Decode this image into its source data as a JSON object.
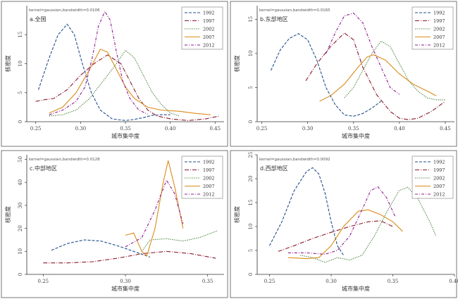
{
  "chart_data": [
    {
      "type": "line",
      "panel_label": "a.全国",
      "kernel_note": "kernel=gaussian,bandwidth=0.0106",
      "xlabel": "城市集中度",
      "ylabel": "核密度",
      "xlim": [
        0.24,
        0.46
      ],
      "ylim": [
        0,
        20
      ],
      "xticks": [
        0.25,
        0.3,
        0.35,
        0.4,
        0.45
      ],
      "xtick_labels": [
        "0.25",
        "0.30",
        "0.35",
        "0.40",
        "0.45"
      ],
      "yticks": [
        0,
        5,
        10,
        15
      ],
      "ytick_labels": [
        "0",
        "5",
        "10",
        "15"
      ],
      "legend_position": "top-right",
      "series": [
        {
          "name": "1992",
          "color": "#1f4e8c",
          "dash": "4,2",
          "points": [
            [
              0.253,
              5.5
            ],
            [
              0.265,
              11
            ],
            [
              0.275,
              15
            ],
            [
              0.285,
              16.8
            ],
            [
              0.293,
              15
            ],
            [
              0.302,
              10
            ],
            [
              0.312,
              5
            ],
            [
              0.322,
              2
            ],
            [
              0.335,
              0.5
            ],
            [
              0.35,
              0.2
            ],
            [
              0.36,
              0.4
            ],
            [
              0.37,
              0.7
            ],
            [
              0.38,
              1.1
            ],
            [
              0.39,
              1.2
            ],
            [
              0.4,
              1.2
            ]
          ]
        },
        {
          "name": "1997",
          "color": "#8b1a2b",
          "dash": "6,2,1,2",
          "points": [
            [
              0.25,
              3.5
            ],
            [
              0.26,
              3.8
            ],
            [
              0.27,
              4
            ],
            [
              0.285,
              5.5
            ],
            [
              0.3,
              8
            ],
            [
              0.315,
              10
            ],
            [
              0.33,
              11.5
            ],
            [
              0.345,
              10
            ],
            [
              0.355,
              7
            ],
            [
              0.365,
              4
            ],
            [
              0.375,
              2
            ],
            [
              0.385,
              1
            ],
            [
              0.4,
              0.5
            ],
            [
              0.42,
              0.2
            ],
            [
              0.44,
              0.5
            ],
            [
              0.455,
              1
            ]
          ]
        },
        {
          "name": "2002",
          "color": "#3a7a2a",
          "dash": "1.2,1.5",
          "points": [
            [
              0.265,
              1
            ],
            [
              0.28,
              1.2
            ],
            [
              0.295,
              2
            ],
            [
              0.31,
              4
            ],
            [
              0.325,
              7
            ],
            [
              0.34,
              10
            ],
            [
              0.35,
              12.3
            ],
            [
              0.36,
              11
            ],
            [
              0.37,
              8
            ],
            [
              0.38,
              5
            ],
            [
              0.39,
              3
            ],
            [
              0.4,
              1.5
            ],
            [
              0.41,
              1
            ]
          ]
        },
        {
          "name": "2007",
          "color": "#d98c1a",
          "dash": "",
          "points": [
            [
              0.265,
              1.5
            ],
            [
              0.28,
              2.5
            ],
            [
              0.295,
              5
            ],
            [
              0.31,
              9
            ],
            [
              0.322,
              12.5
            ],
            [
              0.33,
              12
            ],
            [
              0.34,
              9
            ],
            [
              0.35,
              6
            ],
            [
              0.36,
              4
            ],
            [
              0.375,
              2.5
            ],
            [
              0.39,
              2
            ],
            [
              0.41,
              1.8
            ],
            [
              0.43,
              1.4
            ],
            [
              0.445,
              1.2
            ]
          ]
        },
        {
          "name": "2012",
          "color": "#8e1a8e",
          "dash": "4,2,1,2",
          "points": [
            [
              0.265,
              1.2
            ],
            [
              0.28,
              2
            ],
            [
              0.295,
              3.5
            ],
            [
              0.305,
              6
            ],
            [
              0.313,
              11
            ],
            [
              0.32,
              16.5
            ],
            [
              0.327,
              19
            ],
            [
              0.333,
              17.5
            ],
            [
              0.34,
              12
            ],
            [
              0.347,
              7
            ],
            [
              0.355,
              4
            ],
            [
              0.365,
              2
            ],
            [
              0.375,
              1.3
            ]
          ]
        }
      ]
    },
    {
      "type": "line",
      "panel_label": "b.东部地区",
      "kernel_note": "kernel=gaussian,bandwidth=0.0165",
      "xlabel": "城市集中度",
      "ylabel": "核密度",
      "xlim": [
        0.245,
        0.46
      ],
      "ylim": [
        0,
        17
      ],
      "xticks": [
        0.25,
        0.3,
        0.35,
        0.4,
        0.45
      ],
      "xtick_labels": [
        "0.25",
        "0.30",
        "0.35",
        "0.40",
        "0.45"
      ],
      "yticks": [
        0,
        5,
        10,
        15
      ],
      "ytick_labels": [
        "0",
        "5",
        "10",
        "15"
      ],
      "legend_position": "top-right",
      "series": [
        {
          "name": "1992",
          "color": "#1f4e8c",
          "dash": "4,2",
          "points": [
            [
              0.26,
              7.5
            ],
            [
              0.27,
              10.5
            ],
            [
              0.28,
              12.2
            ],
            [
              0.29,
              12.9
            ],
            [
              0.3,
              12
            ],
            [
              0.31,
              9
            ],
            [
              0.32,
              5
            ],
            [
              0.33,
              2.5
            ],
            [
              0.34,
              1
            ],
            [
              0.35,
              0.8
            ],
            [
              0.36,
              1.2
            ],
            [
              0.37,
              2
            ],
            [
              0.38,
              3
            ]
          ]
        },
        {
          "name": "1997",
          "color": "#8b1a2b",
          "dash": "6,2,1,2",
          "points": [
            [
              0.298,
              6
            ],
            [
              0.31,
              8.5
            ],
            [
              0.325,
              11
            ],
            [
              0.34,
              13
            ],
            [
              0.35,
              12
            ],
            [
              0.36,
              8
            ],
            [
              0.375,
              4
            ],
            [
              0.39,
              1.5
            ],
            [
              0.4,
              0.5
            ],
            [
              0.41,
              0.3
            ],
            [
              0.42,
              0.5
            ],
            [
              0.435,
              1.5
            ],
            [
              0.45,
              3
            ]
          ]
        },
        {
          "name": "2002",
          "color": "#3a7a2a",
          "dash": "1.2,1.5",
          "points": [
            [
              0.34,
              3.5
            ],
            [
              0.35,
              5
            ],
            [
              0.36,
              7.5
            ],
            [
              0.37,
              10
            ],
            [
              0.38,
              11.8
            ],
            [
              0.39,
              11
            ],
            [
              0.4,
              8.5
            ],
            [
              0.41,
              6
            ],
            [
              0.42,
              4.5
            ],
            [
              0.43,
              3.5
            ],
            [
              0.44,
              3.2
            ],
            [
              0.45,
              3.2
            ]
          ]
        },
        {
          "name": "2007",
          "color": "#d98c1a",
          "dash": "",
          "points": [
            [
              0.313,
              3
            ],
            [
              0.325,
              3.8
            ],
            [
              0.34,
              5.5
            ],
            [
              0.355,
              8
            ],
            [
              0.365,
              9.5
            ],
            [
              0.372,
              9.8
            ],
            [
              0.385,
              9
            ],
            [
              0.4,
              7
            ],
            [
              0.415,
              5.5
            ],
            [
              0.43,
              4.5
            ],
            [
              0.44,
              3.8
            ]
          ]
        },
        {
          "name": "2012",
          "color": "#8e1a8e",
          "dash": "4,2,1,2",
          "points": [
            [
              0.32,
              10
            ],
            [
              0.33,
              13
            ],
            [
              0.34,
              15.5
            ],
            [
              0.35,
              15.9
            ],
            [
              0.36,
              14.5
            ],
            [
              0.37,
              11
            ],
            [
              0.38,
              8
            ],
            [
              0.39,
              5
            ],
            [
              0.4,
              4
            ]
          ]
        }
      ]
    },
    {
      "type": "line",
      "panel_label": "c.中部地区",
      "kernel_note": "kernel=gaussian,bandwidth=0.0128",
      "xlabel": "城市集中度",
      "ylabel": "核密度",
      "xlim": [
        0.24,
        0.36
      ],
      "ylim": [
        0,
        52
      ],
      "xticks": [
        0.25,
        0.3,
        0.35
      ],
      "xtick_labels": [
        "0.25",
        "0.30",
        "0.35"
      ],
      "yticks": [
        0,
        10,
        20,
        30,
        40,
        50
      ],
      "ytick_labels": [
        "0",
        "10",
        "20",
        "30",
        "40",
        "50"
      ],
      "legend_position": "top-right",
      "series": [
        {
          "name": "1992",
          "color": "#1f4e8c",
          "dash": "4,2",
          "points": [
            [
              0.255,
              10.5
            ],
            [
              0.265,
              13.5
            ],
            [
              0.275,
              15
            ],
            [
              0.285,
              14.5
            ],
            [
              0.295,
              12.5
            ],
            [
              0.305,
              10
            ],
            [
              0.315,
              7.5
            ]
          ]
        },
        {
          "name": "1997",
          "color": "#8b1a2b",
          "dash": "6,2,1,2",
          "points": [
            [
              0.25,
              5
            ],
            [
              0.265,
              5
            ],
            [
              0.28,
              5.5
            ],
            [
              0.295,
              7
            ],
            [
              0.31,
              9
            ],
            [
              0.325,
              10
            ],
            [
              0.34,
              9
            ],
            [
              0.355,
              7
            ]
          ]
        },
        {
          "name": "2002",
          "color": "#3a7a2a",
          "dash": "1.2,1.5",
          "points": [
            [
              0.31,
              10
            ],
            [
              0.315,
              15
            ],
            [
              0.325,
              15.5
            ],
            [
              0.335,
              14.5
            ],
            [
              0.345,
              16
            ],
            [
              0.356,
              19
            ]
          ]
        },
        {
          "name": "2007",
          "color": "#d98c1a",
          "dash": "",
          "points": [
            [
              0.3,
              17
            ],
            [
              0.305,
              18
            ],
            [
              0.31,
              10
            ],
            [
              0.313,
              8
            ],
            [
              0.318,
              20
            ],
            [
              0.323,
              40
            ],
            [
              0.326,
              49.5
            ],
            [
              0.33,
              38
            ],
            [
              0.335,
              20
            ]
          ]
        },
        {
          "name": "2012",
          "color": "#8e1a8e",
          "dash": "4,2,1,2",
          "points": [
            [
              0.3,
              12
            ],
            [
              0.31,
              16
            ],
            [
              0.318,
              28
            ],
            [
              0.325,
              41
            ],
            [
              0.33,
              35
            ],
            [
              0.335,
              22
            ]
          ]
        }
      ]
    },
    {
      "type": "line",
      "panel_label": "d.西部地区",
      "kernel_note": "kernel=gaussian,bandwidth=0.0092",
      "xlabel": "城市集中度",
      "ylabel": "核密度",
      "xlim": [
        0.24,
        0.4
      ],
      "ylim": [
        0,
        25
      ],
      "xticks": [
        0.25,
        0.3,
        0.35,
        0.4
      ],
      "xtick_labels": [
        "0.25",
        "0.30",
        "0.35",
        "0.40"
      ],
      "yticks": [
        0,
        5,
        10,
        15,
        20,
        25
      ],
      "ytick_labels": [
        "0",
        "5",
        "10",
        "15",
        "20",
        "25"
      ],
      "legend_position": "top-right",
      "series": [
        {
          "name": "1992",
          "color": "#1f4e8c",
          "dash": "4,2",
          "points": [
            [
              0.25,
              6
            ],
            [
              0.26,
              11
            ],
            [
              0.27,
              17.5
            ],
            [
              0.28,
              21.5
            ],
            [
              0.285,
              22.3
            ],
            [
              0.29,
              21
            ],
            [
              0.295,
              17
            ],
            [
              0.3,
              11
            ],
            [
              0.305,
              6
            ],
            [
              0.31,
              4
            ]
          ]
        },
        {
          "name": "1997",
          "color": "#8b1a2b",
          "dash": "6,2,1,2",
          "points": [
            [
              0.257,
              4.8
            ],
            [
              0.27,
              6
            ],
            [
              0.285,
              7.5
            ],
            [
              0.3,
              8.8
            ],
            [
              0.315,
              10
            ],
            [
              0.33,
              11
            ],
            [
              0.34,
              11.2
            ],
            [
              0.35,
              10
            ]
          ]
        },
        {
          "name": "2002",
          "color": "#3a7a2a",
          "dash": "1.2,1.5",
          "points": [
            [
              0.275,
              4
            ],
            [
              0.285,
              3.5
            ],
            [
              0.295,
              2.5
            ],
            [
              0.305,
              3.5
            ],
            [
              0.315,
              3
            ],
            [
              0.325,
              4
            ],
            [
              0.335,
              8
            ],
            [
              0.345,
              13
            ],
            [
              0.355,
              17.5
            ],
            [
              0.362,
              18.2
            ],
            [
              0.37,
              16
            ],
            [
              0.38,
              11
            ],
            [
              0.385,
              8
            ]
          ]
        },
        {
          "name": "2007",
          "color": "#d98c1a",
          "dash": "",
          "points": [
            [
              0.265,
              3.5
            ],
            [
              0.28,
              3.3
            ],
            [
              0.29,
              3.5
            ],
            [
              0.3,
              6
            ],
            [
              0.31,
              10
            ],
            [
              0.322,
              13.2
            ],
            [
              0.33,
              13.5
            ],
            [
              0.34,
              12.5
            ],
            [
              0.35,
              11
            ],
            [
              0.358,
              9
            ]
          ]
        },
        {
          "name": "2012",
          "color": "#8e1a8e",
          "dash": "4,2,1,2",
          "points": [
            [
              0.265,
              4.5
            ],
            [
              0.28,
              4.5
            ],
            [
              0.295,
              4.2
            ],
            [
              0.305,
              5
            ],
            [
              0.315,
              8
            ],
            [
              0.325,
              13.5
            ],
            [
              0.332,
              17.5
            ],
            [
              0.338,
              18.3
            ],
            [
              0.345,
              16
            ],
            [
              0.352,
              12
            ]
          ]
        }
      ]
    }
  ]
}
